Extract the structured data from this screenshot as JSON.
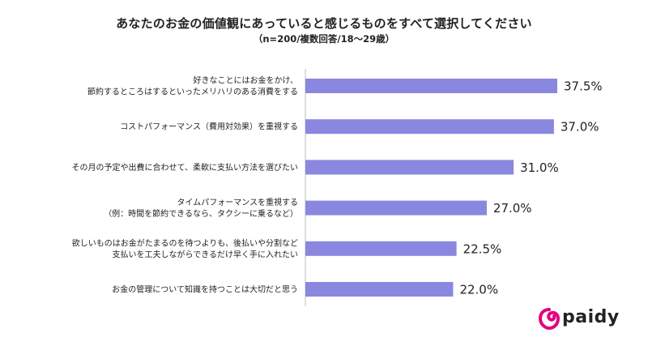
{
  "title": "あなたのお金の価値観にあっていると感じるものをすべて選択してください",
  "subtitle": "（n=200/複数回答/18〜29歳）",
  "brand": {
    "name": "paidy",
    "accent": "#e5007f"
  },
  "chart_data": {
    "type": "bar",
    "orientation": "horizontal",
    "bar_color": "#8a87e0",
    "value_suffix": "%",
    "categories": [
      [
        "好きなことにはお金をかけ、",
        "節約するところはするといったメリハリのある消費をする"
      ],
      [
        "コストパフォーマンス（費用対効果）を重視する"
      ],
      [
        "その月の予定や出費に合わせて、柔軟に支払い方法を選びたい"
      ],
      [
        "タイムパフォーマンスを重視する",
        "（例：時間を節約できるなら、タクシーに乗るなど）"
      ],
      [
        "欲しいものはお金がたまるのを待つよりも、後払いや分割など",
        "支払いを工夫しながらできるだけ早く手に入れたい"
      ],
      [
        "お金の管理について知識を持つことは大切だと思う"
      ]
    ],
    "values": [
      37.5,
      37.0,
      31.0,
      27.0,
      22.5,
      22.0
    ],
    "value_labels": [
      "37.5%",
      "37.0%",
      "31.0%",
      "27.0%",
      "22.5%",
      "22.0%"
    ],
    "xlim": [
      0,
      37.5
    ],
    "grid": false,
    "legend": "none"
  }
}
